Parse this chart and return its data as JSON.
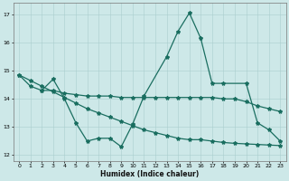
{
  "title": "",
  "xlabel": "Humidex (Indice chaleur)",
  "xlim": [
    -0.5,
    23.5
  ],
  "ylim": [
    11.8,
    17.4
  ],
  "yticks": [
    12,
    13,
    14,
    15,
    16,
    17
  ],
  "xticks": [
    0,
    1,
    2,
    3,
    4,
    5,
    6,
    7,
    8,
    9,
    10,
    11,
    12,
    13,
    14,
    15,
    16,
    17,
    18,
    19,
    20,
    21,
    22,
    23
  ],
  "bg_color": "#cde8e8",
  "grid_color": "#aacece",
  "line_color": "#1a6e60",
  "series1_x": [
    0,
    1,
    2,
    3,
    4,
    5,
    6,
    7,
    8,
    9,
    10,
    11,
    13,
    14,
    15,
    16,
    17,
    18,
    20,
    21,
    22,
    23
  ],
  "series1_y": [
    14.85,
    14.45,
    14.3,
    14.7,
    14.0,
    13.15,
    12.5,
    12.6,
    12.6,
    12.3,
    13.1,
    14.1,
    15.5,
    16.4,
    17.05,
    16.15,
    14.55,
    14.55,
    14.55,
    13.15,
    12.9,
    12.5
  ],
  "series2_x": [
    2,
    3,
    4,
    5,
    6,
    7,
    8,
    9,
    10,
    11,
    12,
    13,
    14,
    15,
    16,
    17,
    18,
    19,
    20,
    21,
    22,
    23
  ],
  "series2_y": [
    14.3,
    14.3,
    14.2,
    14.15,
    14.1,
    14.1,
    14.1,
    14.05,
    14.05,
    14.05,
    14.05,
    14.05,
    14.05,
    14.05,
    14.05,
    14.05,
    14.0,
    14.0,
    13.9,
    13.75,
    13.65,
    13.55
  ],
  "series3_x": [
    0,
    1,
    2,
    3,
    4,
    5,
    6,
    7,
    8,
    9,
    10,
    11,
    12,
    13,
    14,
    15,
    16,
    17,
    18,
    19,
    20,
    21,
    22,
    23
  ],
  "series3_y": [
    14.85,
    14.65,
    14.45,
    14.25,
    14.05,
    13.85,
    13.65,
    13.5,
    13.35,
    13.2,
    13.05,
    12.9,
    12.8,
    12.7,
    12.6,
    12.55,
    12.55,
    12.5,
    12.45,
    12.42,
    12.4,
    12.38,
    12.36,
    12.34
  ],
  "marker": "*",
  "marker_size": 3,
  "linewidth": 0.9
}
